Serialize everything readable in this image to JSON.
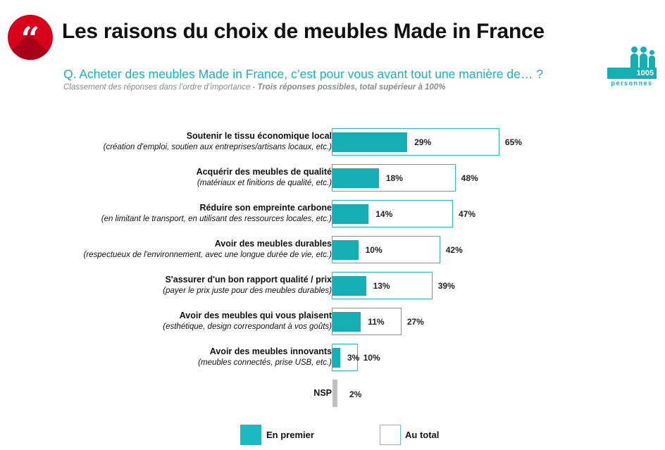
{
  "header": {
    "logo_glyph": "“",
    "title": "Les raisons du choix de meubles Made in France",
    "question": "Q. Acheter des meubles Made in France, c’est pour vous avant tout une manière de… ?",
    "subtitle_plain": "Classement des réponses dans l’ordre d’importance - ",
    "subtitle_bold": "Trois réponses possibles, total supérieur à 100%",
    "sample_count": "1005",
    "sample_label": "personnes"
  },
  "colors": {
    "accent": "#16aeb5",
    "logo_red": "#d9001b",
    "nsp_gray": "#c0c0c0",
    "question_text": "#1ab0b8"
  },
  "chart_data": {
    "type": "bar",
    "orientation": "horizontal",
    "title": "Les raisons du choix de meubles Made in France",
    "unit": "%",
    "xlim": [
      0,
      65
    ],
    "grid": false,
    "legend_position": "bottom",
    "categories": [
      {
        "label": "Soutenir le tissu économique local",
        "detail": "(création d'emploi, soutien aux entreprises/artisans locaux, etc.)"
      },
      {
        "label": "Acquérir des meubles de qualité",
        "detail": "(matériaux et finitions de qualité, etc.)"
      },
      {
        "label": "Réduire son empreinte carbone",
        "detail": "(en limitant le transport, en utilisant des ressources locales, etc.)"
      },
      {
        "label": "Avoir des meubles durables",
        "detail": "(respectueux de l'environnement, avec une longue durée de vie, etc.)"
      },
      {
        "label": "S'assurer d'un bon rapport qualité / prix",
        "detail": "(payer le prix juste pour des meubles durables)"
      },
      {
        "label": "Avoir des meubles qui vous plaisent",
        "detail": "(esthétique, design correspondant à vos goûts)"
      },
      {
        "label": "Avoir des meubles innovants",
        "detail": "(meubles connectés, prise USB, etc.)"
      }
    ],
    "series": [
      {
        "name": "En premier",
        "values": [
          29,
          18,
          14,
          10,
          13,
          11,
          3
        ],
        "labels": [
          "29%",
          "18%",
          "14%",
          "10%",
          "13%",
          "11%",
          "3%"
        ]
      },
      {
        "name": "Au total",
        "values": [
          65,
          48,
          47,
          42,
          39,
          27,
          10
        ],
        "labels": [
          "65%",
          "48%",
          "47%",
          "42%",
          "39%",
          "27%",
          "10%"
        ]
      }
    ],
    "nsp": {
      "label": "NSP",
      "value": 2,
      "value_label": "2%"
    },
    "legend": [
      "En premier",
      "Au total"
    ]
  }
}
